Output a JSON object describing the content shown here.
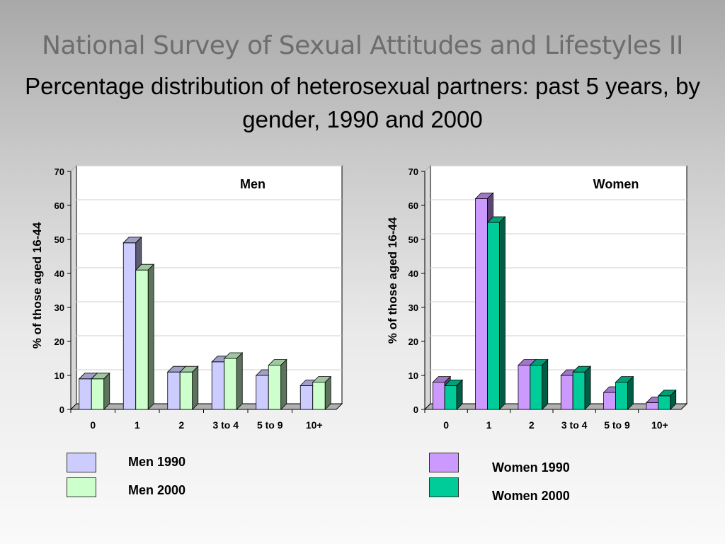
{
  "title": "National Survey of Sexual Attitudes and Lifestyles II",
  "subtitle": "Percentage distribution of heterosexual partners: past 5 years, by gender, 1990 and 2000",
  "chart_data": [
    {
      "type": "bar",
      "title": "Men",
      "ylabel": "% of those aged 16-44",
      "xlabel": "",
      "ylim": [
        0,
        70
      ],
      "yticks": [
        0,
        10,
        20,
        30,
        40,
        50,
        60,
        70
      ],
      "categories": [
        "0",
        "1",
        "2",
        "3 to 4",
        "5 to 9",
        "10+"
      ],
      "grid": true,
      "series": [
        {
          "name": "Men 1990",
          "color": "#ccccff",
          "values": [
            9,
            49,
            11,
            14,
            10,
            7
          ]
        },
        {
          "name": "Men 2000",
          "color": "#ccffcc",
          "values": [
            9,
            41,
            11,
            15,
            13,
            8
          ]
        }
      ]
    },
    {
      "type": "bar",
      "title": "Women",
      "ylabel": "% of those aged 16-44",
      "xlabel": "",
      "ylim": [
        0,
        70
      ],
      "yticks": [
        0,
        10,
        20,
        30,
        40,
        50,
        60,
        70
      ],
      "categories": [
        "0",
        "1",
        "2",
        "3 to 4",
        "5 to 9",
        "10+"
      ],
      "grid": true,
      "series": [
        {
          "name": "Women 1990",
          "color": "#cc99ff",
          "values": [
            8,
            62,
            13,
            10,
            5,
            2
          ]
        },
        {
          "name": "Women 2000",
          "color": "#00cc99",
          "values": [
            7,
            55,
            13,
            11,
            8,
            4
          ]
        }
      ]
    }
  ]
}
